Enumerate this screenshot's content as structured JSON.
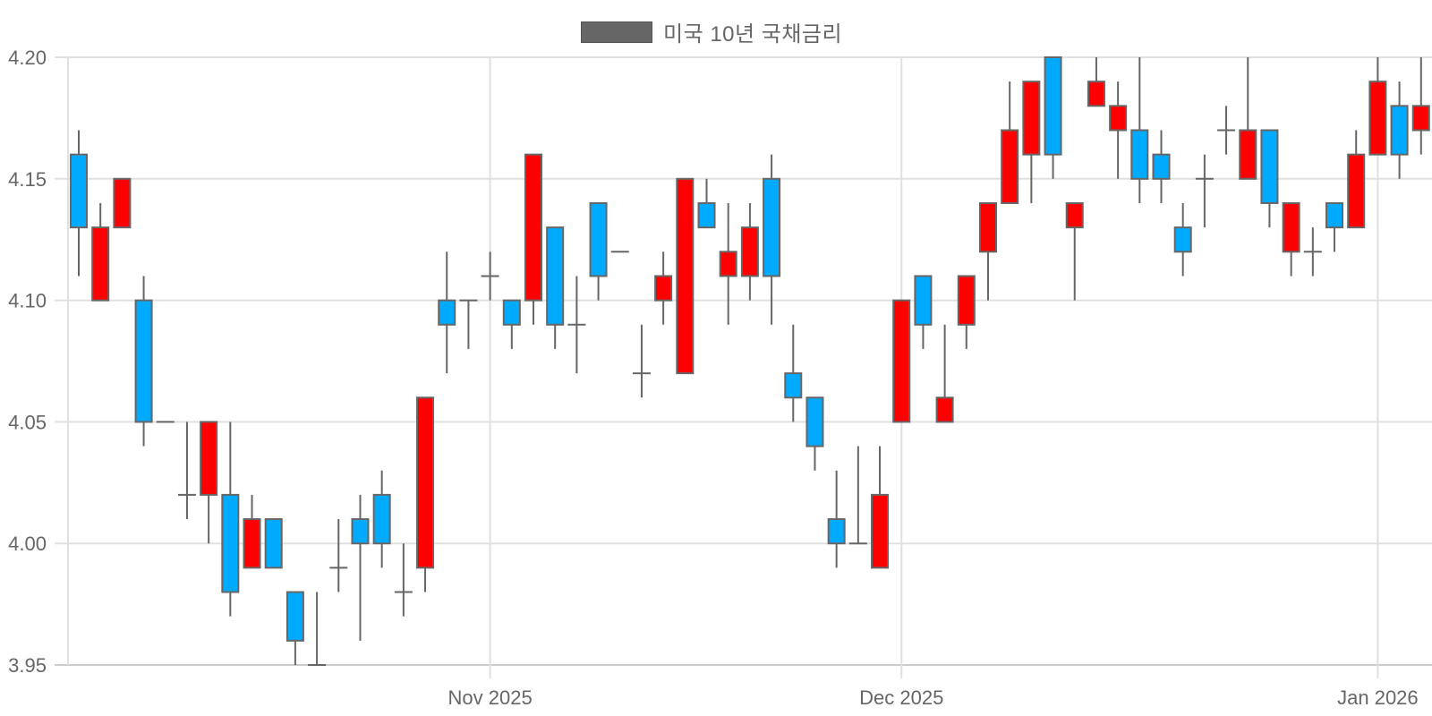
{
  "chart_data": {
    "type": "candlestick",
    "title": "",
    "legend": [
      {
        "label": "미국 10년 국채금리",
        "color": "#666666"
      }
    ],
    "legend_position": "top",
    "xlabel": "",
    "ylabel": "",
    "ylim": [
      3.95,
      4.2
    ],
    "yticks": [
      "3.95",
      "4.00",
      "4.05",
      "4.10",
      "4.15",
      "4.20"
    ],
    "xticks": [
      {
        "label": "Nov 2025",
        "index": 19
      },
      {
        "label": "Dec 2025",
        "index": 38
      },
      {
        "label": "Jan 2026",
        "index": 60
      }
    ],
    "grid": true,
    "colors": {
      "up": "#FF0000",
      "down": "#00AAFF",
      "outline": "#666666",
      "grid": "#e0e0e0",
      "axis": "#cccccc"
    },
    "candles": [
      {
        "o": 4.16,
        "h": 4.17,
        "l": 4.11,
        "c": 4.13
      },
      {
        "o": 4.1,
        "h": 4.14,
        "l": 4.1,
        "c": 4.13
      },
      {
        "o": 4.13,
        "h": 4.15,
        "l": 4.13,
        "c": 4.15
      },
      {
        "o": 4.1,
        "h": 4.11,
        "l": 4.04,
        "c": 4.05
      },
      {
        "o": 4.05,
        "h": 4.05,
        "l": 4.05,
        "c": 4.05
      },
      {
        "o": 4.02,
        "h": 4.05,
        "l": 4.01,
        "c": 4.02
      },
      {
        "o": 4.02,
        "h": 4.05,
        "l": 4.0,
        "c": 4.05
      },
      {
        "o": 4.02,
        "h": 4.05,
        "l": 3.97,
        "c": 3.98
      },
      {
        "o": 3.99,
        "h": 4.02,
        "l": 3.99,
        "c": 4.01
      },
      {
        "o": 4.01,
        "h": 4.01,
        "l": 3.99,
        "c": 3.99
      },
      {
        "o": 3.98,
        "h": 3.98,
        "l": 3.95,
        "c": 3.96
      },
      {
        "o": 3.95,
        "h": 3.98,
        "l": 3.95,
        "c": 3.95
      },
      {
        "o": 3.99,
        "h": 4.01,
        "l": 3.98,
        "c": 3.99
      },
      {
        "o": 4.01,
        "h": 4.02,
        "l": 3.96,
        "c": 4.0
      },
      {
        "o": 4.02,
        "h": 4.03,
        "l": 3.99,
        "c": 4.0
      },
      {
        "o": 3.98,
        "h": 4.0,
        "l": 3.97,
        "c": 3.98
      },
      {
        "o": 3.99,
        "h": 4.06,
        "l": 3.98,
        "c": 4.06
      },
      {
        "o": 4.1,
        "h": 4.12,
        "l": 4.07,
        "c": 4.09
      },
      {
        "o": 4.1,
        "h": 4.1,
        "l": 4.08,
        "c": 4.1
      },
      {
        "o": 4.11,
        "h": 4.12,
        "l": 4.1,
        "c": 4.11
      },
      {
        "o": 4.1,
        "h": 4.1,
        "l": 4.08,
        "c": 4.09
      },
      {
        "o": 4.1,
        "h": 4.16,
        "l": 4.09,
        "c": 4.16
      },
      {
        "o": 4.13,
        "h": 4.13,
        "l": 4.08,
        "c": 4.09
      },
      {
        "o": 4.09,
        "h": 4.11,
        "l": 4.07,
        "c": 4.09
      },
      {
        "o": 4.14,
        "h": 4.14,
        "l": 4.1,
        "c": 4.11
      },
      {
        "o": 4.12,
        "h": 4.12,
        "l": 4.12,
        "c": 4.12
      },
      {
        "o": 4.07,
        "h": 4.09,
        "l": 4.06,
        "c": 4.07
      },
      {
        "o": 4.1,
        "h": 4.12,
        "l": 4.09,
        "c": 4.11
      },
      {
        "o": 4.07,
        "h": 4.15,
        "l": 4.07,
        "c": 4.15
      },
      {
        "o": 4.14,
        "h": 4.15,
        "l": 4.13,
        "c": 4.13
      },
      {
        "o": 4.11,
        "h": 4.14,
        "l": 4.09,
        "c": 4.12
      },
      {
        "o": 4.11,
        "h": 4.14,
        "l": 4.1,
        "c": 4.13
      },
      {
        "o": 4.15,
        "h": 4.16,
        "l": 4.09,
        "c": 4.11
      },
      {
        "o": 4.07,
        "h": 4.09,
        "l": 4.05,
        "c": 4.06
      },
      {
        "o": 4.06,
        "h": 4.06,
        "l": 4.03,
        "c": 4.04
      },
      {
        "o": 4.01,
        "h": 4.03,
        "l": 3.99,
        "c": 4.0
      },
      {
        "o": 4.0,
        "h": 4.04,
        "l": 4.0,
        "c": 4.0
      },
      {
        "o": 3.99,
        "h": 4.04,
        "l": 3.99,
        "c": 4.02
      },
      {
        "o": 4.05,
        "h": 4.1,
        "l": 4.05,
        "c": 4.1
      },
      {
        "o": 4.11,
        "h": 4.11,
        "l": 4.08,
        "c": 4.09
      },
      {
        "o": 4.05,
        "h": 4.09,
        "l": 4.05,
        "c": 4.06
      },
      {
        "o": 4.09,
        "h": 4.11,
        "l": 4.08,
        "c": 4.11
      },
      {
        "o": 4.12,
        "h": 4.14,
        "l": 4.1,
        "c": 4.14
      },
      {
        "o": 4.14,
        "h": 4.19,
        "l": 4.14,
        "c": 4.17
      },
      {
        "o": 4.16,
        "h": 4.19,
        "l": 4.14,
        "c": 4.19
      },
      {
        "o": 4.2,
        "h": 4.2,
        "l": 4.15,
        "c": 4.16
      },
      {
        "o": 4.13,
        "h": 4.14,
        "l": 4.1,
        "c": 4.14
      },
      {
        "o": 4.18,
        "h": 4.2,
        "l": 4.18,
        "c": 4.19
      },
      {
        "o": 4.17,
        "h": 4.19,
        "l": 4.15,
        "c": 4.18
      },
      {
        "o": 4.17,
        "h": 4.2,
        "l": 4.14,
        "c": 4.15
      },
      {
        "o": 4.16,
        "h": 4.17,
        "l": 4.14,
        "c": 4.15
      },
      {
        "o": 4.13,
        "h": 4.14,
        "l": 4.11,
        "c": 4.12
      },
      {
        "o": 4.15,
        "h": 4.16,
        "l": 4.13,
        "c": 4.15
      },
      {
        "o": 4.17,
        "h": 4.18,
        "l": 4.16,
        "c": 4.17
      },
      {
        "o": 4.15,
        "h": 4.2,
        "l": 4.15,
        "c": 4.17
      },
      {
        "o": 4.17,
        "h": 4.17,
        "l": 4.13,
        "c": 4.14
      },
      {
        "o": 4.12,
        "h": 4.14,
        "l": 4.11,
        "c": 4.14
      },
      {
        "o": 4.12,
        "h": 4.13,
        "l": 4.11,
        "c": 4.12
      },
      {
        "o": 4.14,
        "h": 4.14,
        "l": 4.12,
        "c": 4.13
      },
      {
        "o": 4.13,
        "h": 4.17,
        "l": 4.13,
        "c": 4.16
      },
      {
        "o": 4.16,
        "h": 4.2,
        "l": 4.16,
        "c": 4.19
      },
      {
        "o": 4.18,
        "h": 4.19,
        "l": 4.15,
        "c": 4.16
      },
      {
        "o": 4.17,
        "h": 4.2,
        "l": 4.16,
        "c": 4.18
      }
    ]
  },
  "legend": {
    "label": "미국 10년 국채금리"
  }
}
